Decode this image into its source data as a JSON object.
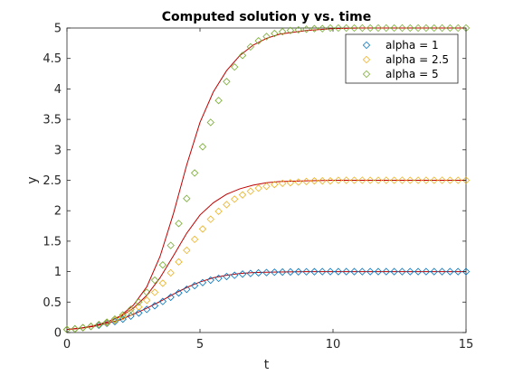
{
  "chart_data": {
    "type": "scatter",
    "title": "Computed solution y vs. time",
    "xlabel": "t",
    "ylabel": "y",
    "xlim": [
      0,
      15
    ],
    "ylim": [
      0,
      5
    ],
    "xticks": [
      "0",
      "5",
      "10",
      "15"
    ],
    "yticks": [
      "0",
      "0.5",
      "1",
      "1.5",
      "2",
      "2.5",
      "3",
      "3.5",
      "4",
      "4.5",
      "5"
    ],
    "grid": false,
    "legend_position": "top-right",
    "marker": "diamond",
    "sample_t": [
      0,
      0.3,
      0.6,
      0.9,
      1.2,
      1.5,
      1.8,
      2.1,
      2.4,
      2.7,
      3.0,
      3.3,
      3.6,
      3.9,
      4.2,
      4.5,
      4.8,
      5.1,
      5.4,
      5.7,
      6.0,
      6.3,
      6.6,
      6.9,
      7.2,
      7.5,
      7.8,
      8.1,
      8.4,
      8.7,
      9.0,
      9.3,
      9.6,
      9.9,
      10.2,
      10.5,
      10.8,
      11.1,
      11.4,
      11.7,
      12.0,
      12.3,
      12.6,
      12.9,
      13.2,
      13.5,
      13.8,
      14.1,
      14.4,
      14.7,
      15.0
    ],
    "series": [
      {
        "name": "alpha = 1",
        "color": "#0072BD",
        "y": [
          0.05,
          0.06,
          0.08,
          0.1,
          0.12,
          0.15,
          0.18,
          0.22,
          0.27,
          0.32,
          0.38,
          0.44,
          0.51,
          0.58,
          0.65,
          0.71,
          0.77,
          0.82,
          0.86,
          0.89,
          0.92,
          0.94,
          0.96,
          0.97,
          0.98,
          0.985,
          0.99,
          0.993,
          0.995,
          0.997,
          0.998,
          0.999,
          1.0,
          1.0,
          1.0,
          1.0,
          1.0,
          1.0,
          1.0,
          1.0,
          1.0,
          1.0,
          1.0,
          1.0,
          1.0,
          1.0,
          1.0,
          1.0,
          1.0,
          1.0,
          1.0
        ]
      },
      {
        "name": "alpha = 2.5",
        "color": "#EDB120",
        "y": [
          0.05,
          0.06,
          0.08,
          0.1,
          0.13,
          0.16,
          0.2,
          0.26,
          0.33,
          0.42,
          0.53,
          0.66,
          0.81,
          0.98,
          1.16,
          1.35,
          1.53,
          1.7,
          1.86,
          1.99,
          2.1,
          2.19,
          2.26,
          2.32,
          2.37,
          2.4,
          2.43,
          2.45,
          2.46,
          2.47,
          2.48,
          2.49,
          2.49,
          2.49,
          2.5,
          2.5,
          2.5,
          2.5,
          2.5,
          2.5,
          2.5,
          2.5,
          2.5,
          2.5,
          2.5,
          2.5,
          2.5,
          2.5,
          2.5,
          2.5,
          2.5
        ]
      },
      {
        "name": "alpha = 5",
        "color": "#77AC30",
        "y": [
          0.05,
          0.06,
          0.08,
          0.1,
          0.13,
          0.17,
          0.22,
          0.29,
          0.38,
          0.5,
          0.66,
          0.86,
          1.11,
          1.43,
          1.79,
          2.2,
          2.62,
          3.05,
          3.45,
          3.81,
          4.12,
          4.36,
          4.55,
          4.69,
          4.79,
          4.86,
          4.91,
          4.94,
          4.96,
          4.97,
          4.98,
          4.99,
          4.99,
          5.0,
          5.0,
          5.0,
          5.0,
          5.0,
          5.0,
          5.0,
          5.0,
          5.0,
          5.0,
          5.0,
          5.0,
          5.0,
          5.0,
          5.0,
          5.0,
          5.0,
          5.0
        ]
      }
    ],
    "reference_lines": {
      "color": "#C00000",
      "t": [
        0,
        0.5,
        1.0,
        1.5,
        2.0,
        2.5,
        3.0,
        3.5,
        4.0,
        4.5,
        5.0,
        5.5,
        6.0,
        6.5,
        7.0,
        7.5,
        8.0,
        9.0,
        10.0,
        11.0,
        12.0,
        13.0,
        14.0,
        15.0
      ],
      "curves": [
        [
          0.05,
          0.07,
          0.1,
          0.15,
          0.21,
          0.3,
          0.4,
          0.51,
          0.63,
          0.74,
          0.83,
          0.9,
          0.94,
          0.97,
          0.985,
          0.99,
          0.995,
          1.0,
          1.0,
          1.0,
          1.0,
          1.0,
          1.0,
          1.0
        ],
        [
          0.05,
          0.07,
          0.11,
          0.17,
          0.26,
          0.4,
          0.61,
          0.9,
          1.26,
          1.63,
          1.93,
          2.13,
          2.27,
          2.36,
          2.42,
          2.46,
          2.48,
          2.49,
          2.5,
          2.5,
          2.5,
          2.5,
          2.5,
          2.5
        ],
        [
          0.05,
          0.07,
          0.11,
          0.17,
          0.27,
          0.45,
          0.75,
          1.25,
          1.95,
          2.75,
          3.45,
          3.95,
          4.3,
          4.55,
          4.72,
          4.83,
          4.9,
          4.96,
          4.99,
          5.0,
          5.0,
          5.0,
          5.0,
          5.0
        ]
      ]
    }
  }
}
